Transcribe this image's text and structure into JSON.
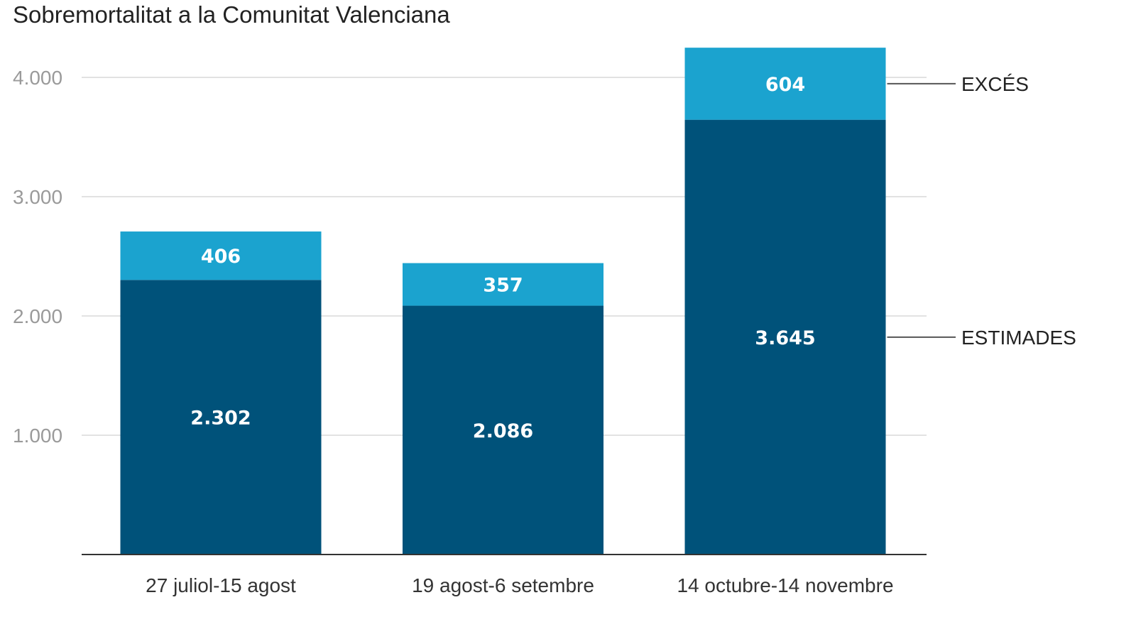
{
  "chart_data": {
    "type": "bar",
    "stacked": true,
    "title": "Sobremortalitat a la Comunitat Valenciana",
    "xlabel": "",
    "ylabel": "",
    "ylim": [
      0,
      4250
    ],
    "yticks": [
      1000,
      2000,
      3000,
      4000
    ],
    "ytick_labels": [
      "1.000",
      "2.000",
      "3.000",
      "4.000"
    ],
    "grid": true,
    "legend": "right-inline",
    "categories": [
      "27 juliol-15 agost",
      "19 agost-6 setembre",
      "14 octubre-14 novembre"
    ],
    "series": [
      {
        "name": "ESTIMADES",
        "values": [
          2302,
          2086,
          3645
        ],
        "labels": [
          "2.302",
          "2.086",
          "3.645"
        ],
        "color": "#00527a"
      },
      {
        "name": "EXCÉS",
        "values": [
          406,
          357,
          604
        ],
        "labels": [
          "406",
          "357",
          "604"
        ],
        "color": "#1ba3cf"
      }
    ]
  }
}
